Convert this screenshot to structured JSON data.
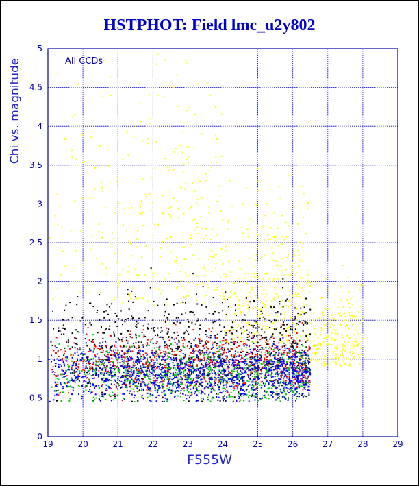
{
  "chart_data": {
    "type": "scatter",
    "title": "HSTPHOT: Field lmc_u2y802",
    "xlabel": "F555W",
    "ylabel": "Chi vs. magnitude",
    "annotation": "All CCDs",
    "xlim": [
      19,
      29
    ],
    "ylim": [
      0,
      5
    ],
    "xticks": [
      "19",
      "20",
      "21",
      "22",
      "23",
      "24",
      "25",
      "26",
      "27",
      "28",
      "29"
    ],
    "yticks": [
      "0",
      "0.5",
      "1",
      "1.5",
      "2",
      "2.5",
      "3",
      "3.5",
      "4",
      "4.5",
      "5"
    ],
    "grid": true,
    "series_colors": [
      "#ffff00",
      "#000000",
      "#ff0000",
      "#00cc00",
      "#0000ff"
    ],
    "series": [
      {
        "color": "#ffff00",
        "x": [
          22.1,
          22.6,
          23.0,
          23.4,
          23.8,
          24.2,
          24.6,
          25.0,
          25.4,
          25.8,
          26.2,
          26.6,
          27.0,
          27.4,
          23.2,
          24.1,
          24.9,
          25.6,
          26.3,
          22.8,
          21.5,
          20.8,
          19.9,
          19.5,
          23.6,
          24.4,
          25.2,
          26.0,
          26.8,
          27.6
        ],
        "y": [
          4.8,
          4.5,
          4.2,
          3.9,
          3.6,
          3.3,
          3.0,
          2.6,
          2.3,
          2.0,
          1.8,
          1.5,
          1.3,
          1.1,
          2.8,
          2.4,
          2.1,
          1.9,
          1.6,
          3.2,
          4.0,
          4.4,
          3.5,
          2.2,
          2.0,
          1.8,
          1.7,
          1.4,
          1.2,
          1.0
        ]
      },
      {
        "color": "#000000",
        "x": [
          19.3,
          19.8,
          20.4,
          20.9,
          21.5,
          22.0,
          22.6,
          23.1,
          23.7,
          24.2,
          24.8,
          25.3
        ],
        "y": [
          1.4,
          1.2,
          1.6,
          1.3,
          1.8,
          1.5,
          1.7,
          1.2,
          1.4,
          1.1,
          1.0,
          0.9
        ]
      },
      {
        "color": "#ff0000",
        "x": [
          19.5,
          20.2,
          20.8,
          21.4,
          22.1,
          22.7,
          23.3,
          23.9,
          24.5,
          25.1,
          25.7,
          26.3
        ],
        "y": [
          1.1,
          0.9,
          1.3,
          1.0,
          1.2,
          0.9,
          1.1,
          0.95,
          1.0,
          0.85,
          0.9,
          0.7
        ]
      },
      {
        "color": "#00cc00",
        "x": [
          19.4,
          20.0,
          20.6,
          21.2,
          21.8,
          22.4,
          23.0,
          23.6,
          24.2,
          24.8,
          25.4,
          26.0
        ],
        "y": [
          0.8,
          1.0,
          0.7,
          0.9,
          0.85,
          1.0,
          0.8,
          0.9,
          0.75,
          0.85,
          0.8,
          0.7
        ]
      },
      {
        "color": "#0000ff",
        "x": [
          19.6,
          20.3,
          21.0,
          21.7,
          22.4,
          23.1,
          23.8,
          24.5,
          25.2,
          25.9,
          26.3
        ],
        "y": [
          0.7,
          0.8,
          0.75,
          0.85,
          0.8,
          0.9,
          0.8,
          0.85,
          0.75,
          0.8,
          0.7
        ]
      }
    ]
  }
}
